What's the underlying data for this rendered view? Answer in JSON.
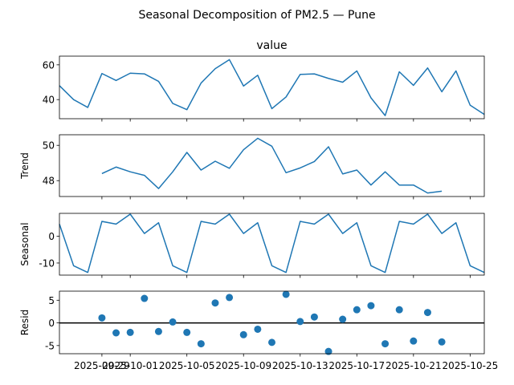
{
  "figure": {
    "title": "Seasonal Decomposition of PM2.5 — Pune"
  },
  "colors": {
    "series": "#1f77b4",
    "zero_line": "#000000",
    "frame": "#000000"
  },
  "chart_data": [
    {
      "type": "line",
      "title": "value",
      "ylabel": "",
      "ylim": [
        29,
        65
      ],
      "yticks": [
        40,
        60
      ],
      "x_start": "2025-09-26",
      "x_step_days": 1,
      "xlim": [
        "2025-09-26",
        "2025-10-26"
      ],
      "values": [
        48,
        40,
        35.5,
        55,
        51,
        55.2,
        54.8,
        50.5,
        37.8,
        34.2,
        49.5,
        57.8,
        63,
        47.8,
        54,
        34.8,
        41.5,
        54.5,
        54.8,
        52.2,
        50,
        56.5,
        41,
        30.8,
        56,
        48.2,
        58.2,
        44.5,
        56.5,
        36.8,
        31.5
      ]
    },
    {
      "type": "line",
      "title": "",
      "ylabel": "Trend",
      "ylim": [
        47.1,
        50.6
      ],
      "yticks": [
        48,
        50
      ],
      "x_start": "2025-09-26",
      "x_step_days": 1,
      "xlim": [
        "2025-09-26",
        "2025-10-26"
      ],
      "values": [
        null,
        null,
        null,
        48.4,
        48.77,
        48.5,
        48.3,
        47.55,
        48.5,
        49.6,
        48.6,
        49.1,
        48.7,
        49.75,
        50.4,
        49.95,
        48.45,
        48.72,
        49.08,
        49.92,
        48.38,
        48.6,
        47.75,
        48.5,
        47.75,
        47.75,
        47.3,
        47.4,
        null,
        null,
        null
      ]
    },
    {
      "type": "line",
      "title": "",
      "ylabel": "Seasonal",
      "ylim": [
        -14.5,
        8.5
      ],
      "yticks": [
        -10,
        0
      ],
      "x_start": "2025-09-26",
      "x_step_days": 1,
      "xlim": [
        "2025-09-26",
        "2025-10-26"
      ],
      "values": [
        4.5,
        -11,
        -13.5,
        5.5,
        4.5,
        8.2,
        1,
        5,
        -11,
        -13.5,
        5.5,
        4.5,
        8.2,
        1,
        5,
        -11,
        -13.5,
        5.5,
        4.5,
        8.2,
        1,
        5,
        -11,
        -13.5,
        5.5,
        4.5,
        8.2,
        1,
        5,
        -11,
        -13.5
      ]
    },
    {
      "type": "scatter",
      "title": "",
      "ylabel": "Resid",
      "ylim": [
        -6.8,
        7
      ],
      "yticks": [
        -5,
        0,
        5
      ],
      "x_start": "2025-09-26",
      "x_step_days": 1,
      "xlim": [
        "2025-09-26",
        "2025-10-26"
      ],
      "zero_line": true,
      "values": [
        null,
        null,
        null,
        1.1,
        -2.2,
        -2.1,
        5.4,
        -1.9,
        0.2,
        -2.1,
        -4.6,
        4.4,
        5.6,
        -2.6,
        -1.4,
        -4.3,
        6.3,
        0.3,
        1.3,
        -6.3,
        0.8,
        2.9,
        3.8,
        -4.6,
        2.9,
        -4,
        2.3,
        -4.2,
        null,
        null,
        null
      ]
    }
  ],
  "x_axis": {
    "tick_dates": [
      "2025-09-29",
      "2025-10-01",
      "2025-10-05",
      "2025-10-09",
      "2025-10-13",
      "2025-10-17",
      "2025-10-21",
      "2025-10-25"
    ],
    "tick_labels": [
      "2025-09-29",
      "2025-10-01",
      "2025-10-05",
      "2025-10-09",
      "2025-10-13",
      "2025-10-17",
      "2025-10-21",
      "2025-10-25"
    ]
  }
}
